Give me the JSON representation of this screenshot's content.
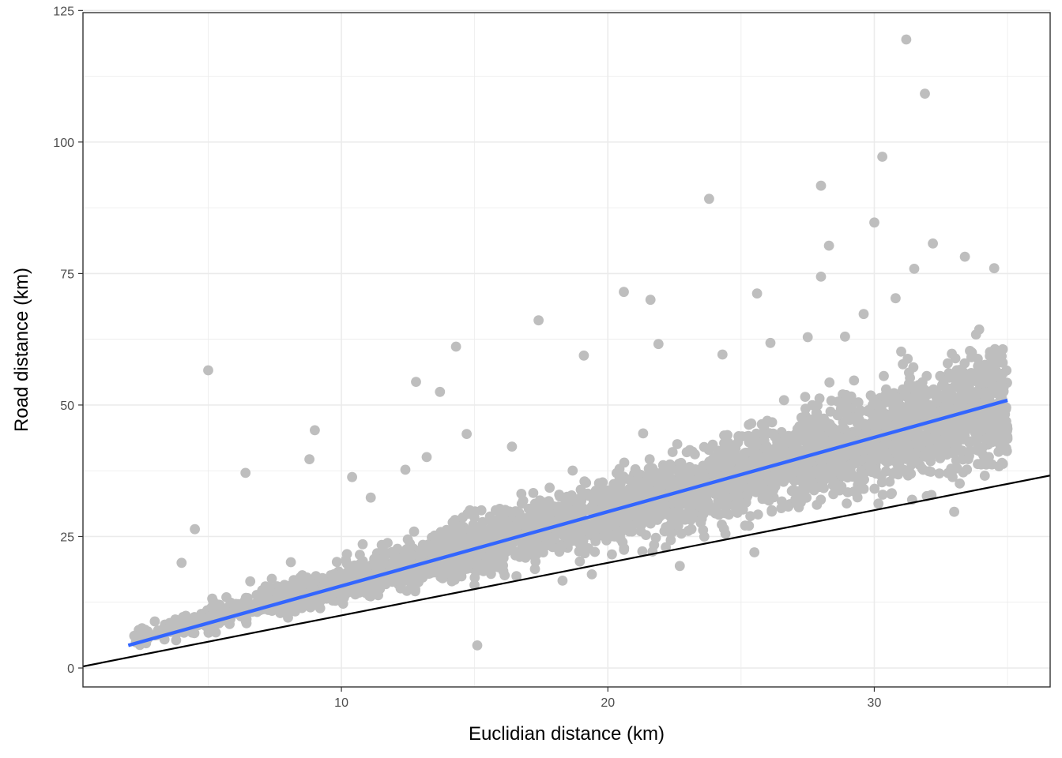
{
  "chart_data": {
    "type": "scatter",
    "title": "",
    "xlabel": "Euclidian distance (km)",
    "ylabel": "Road distance (km)",
    "xlim": [
      0.3,
      36.6
    ],
    "ylim": [
      -3.6,
      124.6
    ],
    "x_ticks": [
      10,
      20,
      30
    ],
    "y_ticks": [
      0,
      25,
      50,
      75,
      100,
      125
    ],
    "x_tick_labels": [
      "10",
      "20",
      "30"
    ],
    "y_tick_labels": [
      "0",
      "25",
      "50",
      "75",
      "100",
      "125"
    ],
    "grid": true,
    "legend": "none",
    "colors": {
      "points": "#bebebe",
      "fit_line": "#3366ff",
      "reference_line": "#000000",
      "grid": "#ebebeb",
      "panel_border": "#333333"
    },
    "series": [
      {
        "kind": "points",
        "outliers": [
          [
            31.2,
            119.5
          ],
          [
            31.9,
            109.2
          ],
          [
            30.3,
            97.2
          ],
          [
            28.0,
            91.7
          ],
          [
            23.8,
            89.2
          ],
          [
            30.0,
            84.7
          ],
          [
            32.2,
            80.7
          ],
          [
            28.3,
            80.3
          ],
          [
            33.4,
            78.2
          ],
          [
            31.5,
            75.9
          ],
          [
            34.5,
            76.0
          ],
          [
            28.0,
            74.4
          ],
          [
            20.6,
            71.5
          ],
          [
            25.6,
            71.2
          ],
          [
            21.6,
            70.0
          ],
          [
            17.4,
            66.1
          ],
          [
            14.3,
            61.1
          ],
          [
            5.0,
            56.6
          ],
          [
            12.8,
            54.4
          ],
          [
            13.7,
            52.5
          ],
          [
            9.0,
            45.2
          ],
          [
            8.8,
            39.7
          ],
          [
            6.4,
            37.1
          ],
          [
            4.5,
            26.4
          ],
          [
            15.1,
            4.3
          ],
          [
            33.0,
            29.7
          ],
          [
            22.7,
            19.4
          ],
          [
            25.5,
            22.0
          ],
          [
            19.4,
            17.8
          ],
          [
            18.3,
            16.6
          ],
          [
            4.0,
            20.0
          ],
          [
            10.4,
            36.3
          ],
          [
            11.1,
            32.4
          ],
          [
            12.4,
            37.7
          ],
          [
            13.2,
            40.1
          ],
          [
            14.7,
            44.5
          ],
          [
            16.4,
            42.1
          ],
          [
            19.1,
            59.4
          ],
          [
            21.9,
            61.6
          ],
          [
            24.3,
            59.6
          ],
          [
            26.1,
            61.8
          ],
          [
            27.5,
            62.9
          ],
          [
            28.9,
            63.0
          ],
          [
            29.6,
            67.3
          ],
          [
            30.8,
            70.3
          ]
        ],
        "cloud_model": "y = 1.37*x + 2.0 with right-skewed spread, x from 2.0 to 35.0"
      },
      {
        "kind": "fit_line",
        "points": [
          [
            2.0,
            4.3
          ],
          [
            35.0,
            50.9
          ]
        ]
      },
      {
        "kind": "reference_line",
        "equation": "y = x",
        "points": [
          [
            0.3,
            0.3
          ],
          [
            36.6,
            36.6
          ]
        ]
      }
    ]
  }
}
